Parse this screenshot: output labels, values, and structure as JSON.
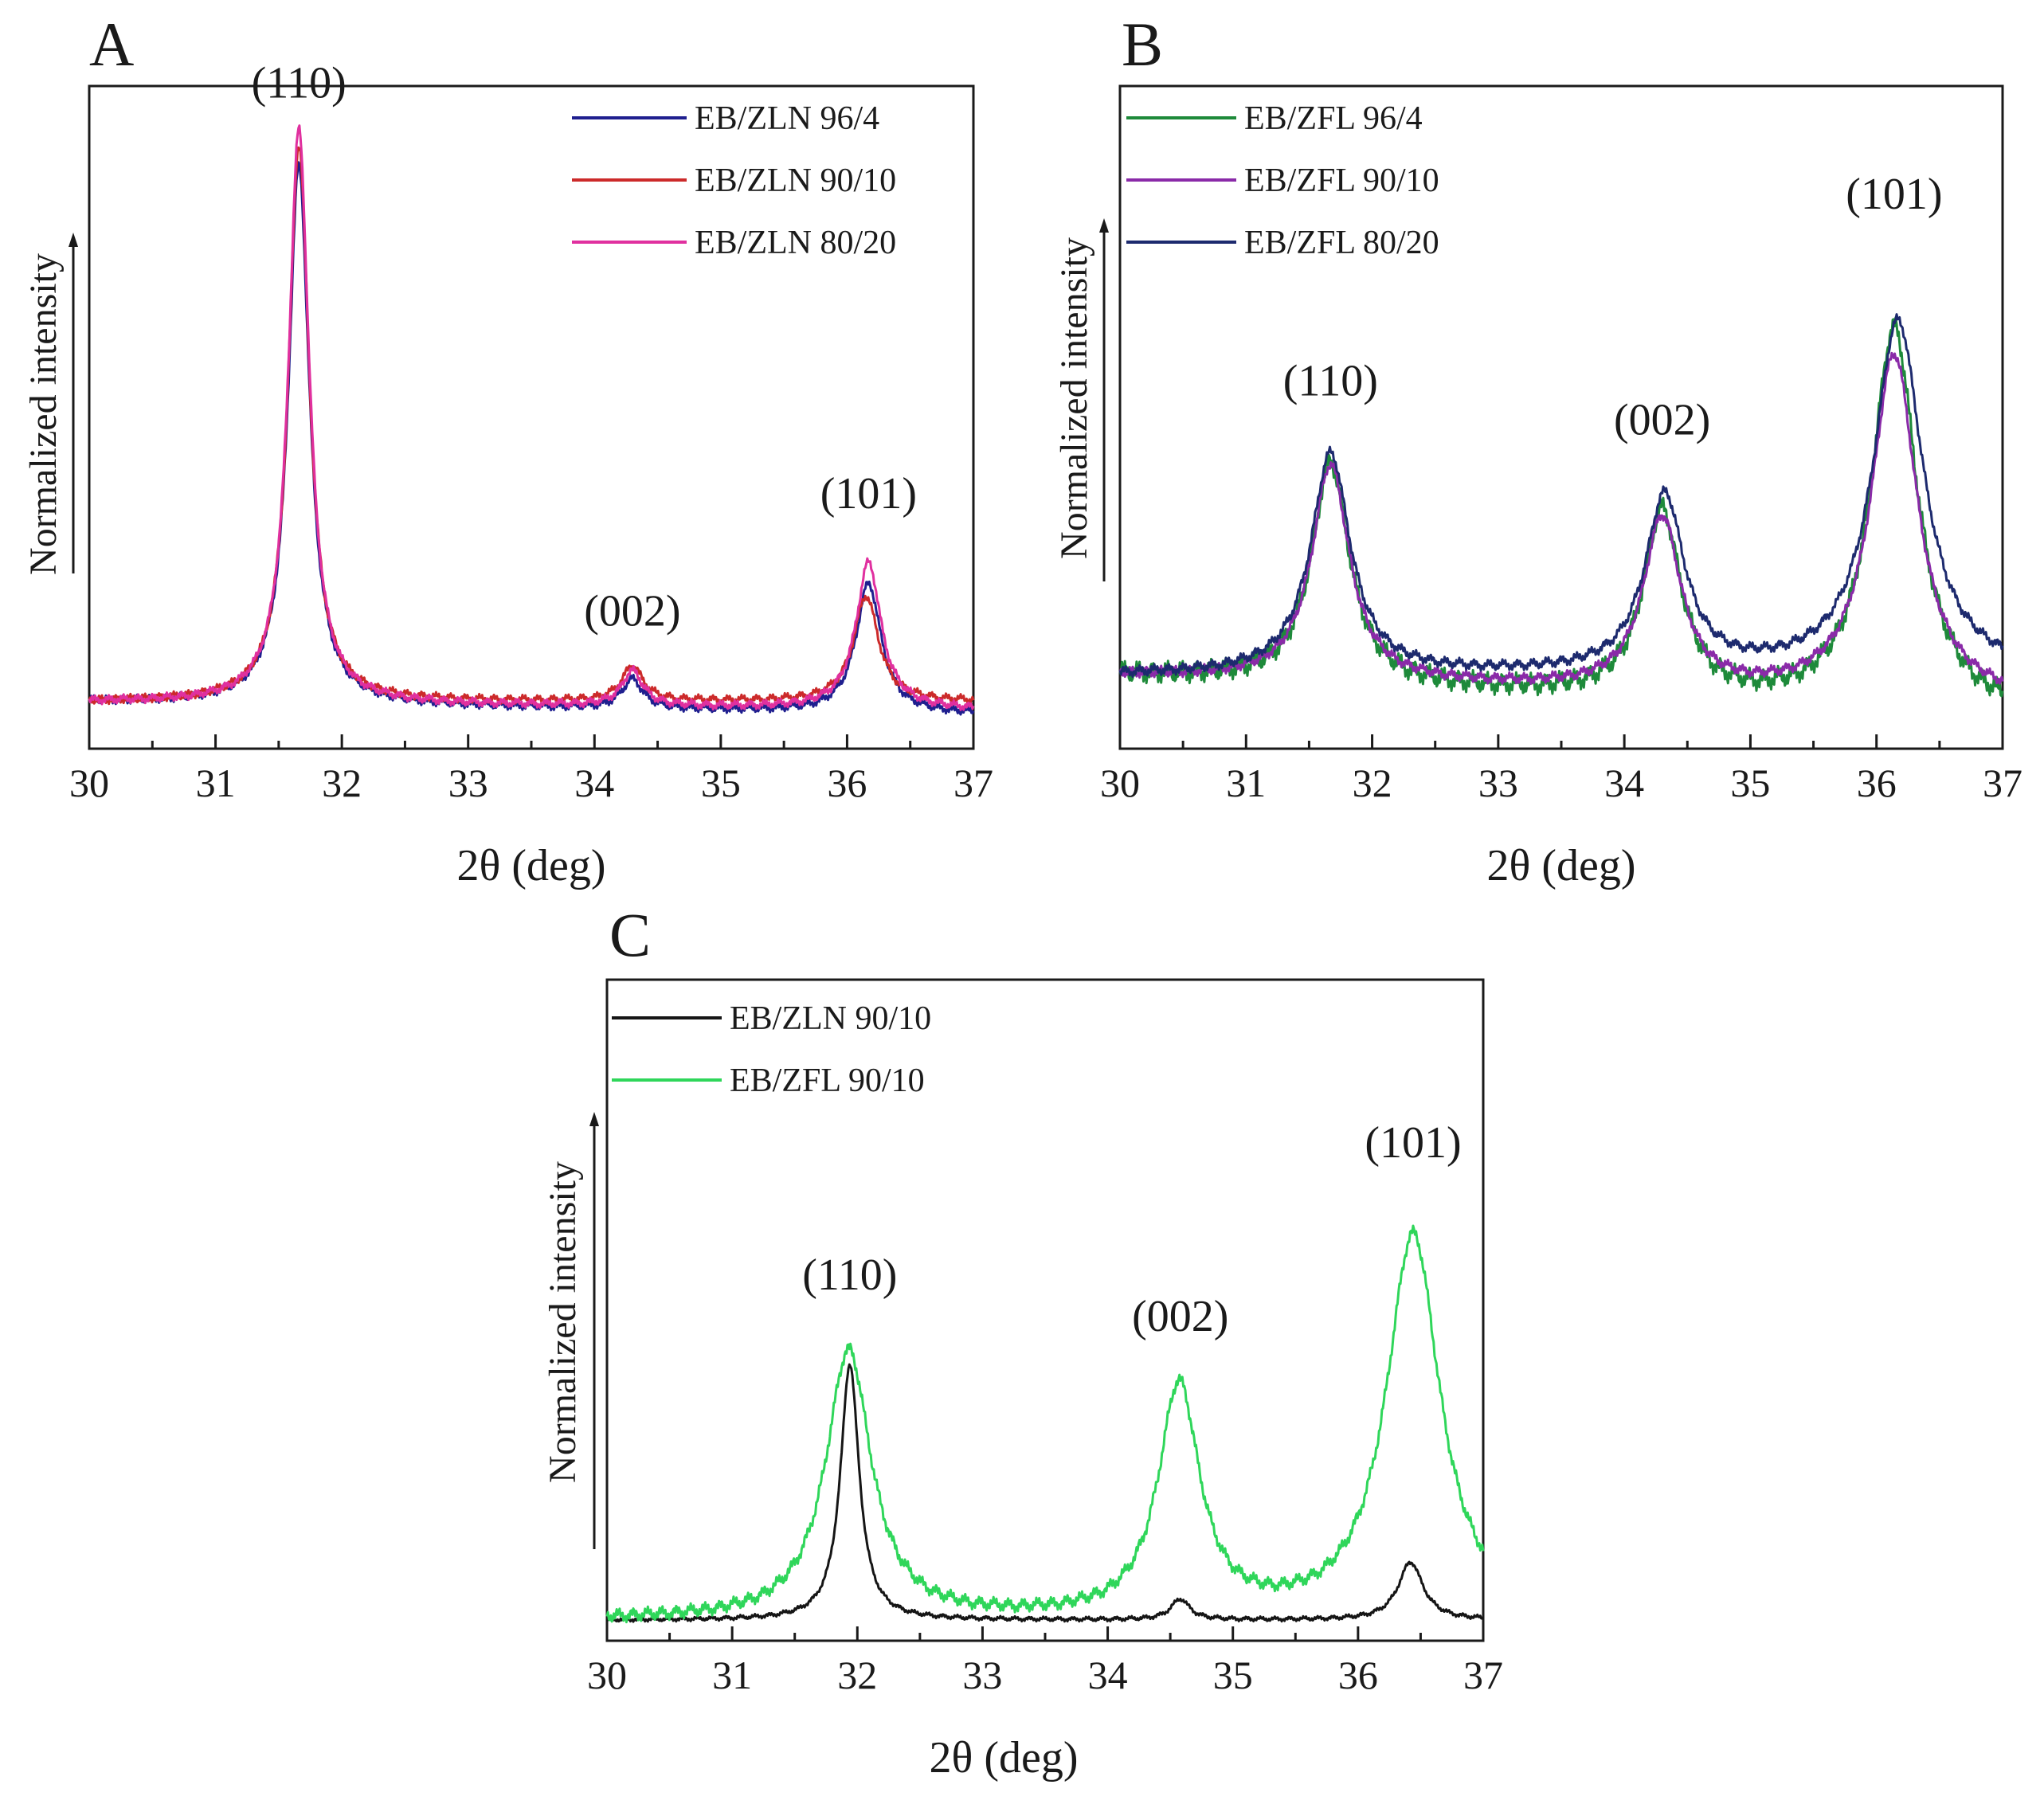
{
  "figure": {
    "panels": [
      "A",
      "B",
      "C"
    ]
  },
  "chart_data": [
    {
      "type": "line",
      "panel": "A",
      "xlabel": "2θ (deg)",
      "ylabel": "Normalized intensity",
      "xlim": [
        30,
        37
      ],
      "ylim": [
        -0.08,
        1.05
      ],
      "xticks": [
        30,
        31,
        32,
        33,
        34,
        35,
        36,
        37
      ],
      "legend_position": "top-right",
      "series": [
        {
          "name": "EB/ZLN 96/4",
          "color": "#1f1f8f",
          "baseline": 0.0,
          "slope": -0.003,
          "noise": 0.004,
          "peaks": [
            [
              31.66,
              0.92,
              0.1
            ],
            [
              34.3,
              0.05,
              0.1
            ],
            [
              36.17,
              0.22,
              0.12
            ]
          ]
        },
        {
          "name": "EB/ZLN 90/10",
          "color": "#cc2a2a",
          "baseline": 0.0,
          "slope": 0.0,
          "noise": 0.004,
          "peaks": [
            [
              31.66,
              0.95,
              0.1
            ],
            [
              34.3,
              0.06,
              0.1
            ],
            [
              36.15,
              0.18,
              0.12
            ]
          ]
        },
        {
          "name": "EB/ZLN 80/20",
          "color": "#e0309f",
          "baseline": 0.0,
          "slope": -0.002,
          "noise": 0.004,
          "peaks": [
            [
              31.66,
              0.98,
              0.1
            ],
            [
              34.3,
              0.06,
              0.1
            ],
            [
              36.17,
              0.25,
              0.12
            ]
          ]
        }
      ],
      "annotations": [
        {
          "text": "(110)",
          "x": 31.66,
          "y": 1.03
        },
        {
          "text": "(002)",
          "x": 34.3,
          "y": 0.13
        },
        {
          "text": "(101)",
          "x": 36.17,
          "y": 0.33
        }
      ]
    },
    {
      "type": "line",
      "panel": "B",
      "xlabel": "2θ (deg)",
      "ylabel": "Normalized intensity",
      "xlim": [
        30,
        37
      ],
      "ylim": [
        -0.15,
        1.2
      ],
      "xticks": [
        30,
        31,
        32,
        33,
        34,
        35,
        36,
        37
      ],
      "legend_position": "top-left",
      "series": [
        {
          "name": "EB/ZFL 96/4",
          "color": "#1e8a3a",
          "baseline": 0.0,
          "slope": -0.012,
          "noise": 0.012,
          "peaks": [
            [
              31.67,
              0.45,
              0.18
            ],
            [
              34.3,
              0.38,
              0.18
            ],
            [
              36.14,
              0.78,
              0.22
            ]
          ]
        },
        {
          "name": "EB/ZFL 90/10",
          "color": "#8a2aa8",
          "baseline": 0.0,
          "slope": -0.008,
          "noise": 0.006,
          "peaks": [
            [
              31.67,
              0.44,
              0.18
            ],
            [
              34.3,
              0.35,
              0.18
            ],
            [
              36.14,
              0.7,
              0.22
            ]
          ]
        },
        {
          "name": "EB/ZFL 80/20",
          "color": "#1d2a6e",
          "baseline": 0.0,
          "slope": 0.0,
          "noise": 0.006,
          "peaks": [
            [
              31.67,
              0.45,
              0.19
            ],
            [
              34.32,
              0.36,
              0.19
            ],
            [
              36.17,
              0.72,
              0.24
            ]
          ]
        }
      ],
      "annotations": [
        {
          "text": "(110)",
          "x": 31.67,
          "y": 0.57
        },
        {
          "text": "(002)",
          "x": 34.3,
          "y": 0.49
        },
        {
          "text": "(101)",
          "x": 36.14,
          "y": 0.95
        }
      ]
    },
    {
      "type": "line",
      "panel": "C",
      "xlabel": "2θ (deg)",
      "ylabel": "Normalized intensity",
      "xlim": [
        30,
        37
      ],
      "ylim": [
        -0.05,
        1.55
      ],
      "xticks": [
        30,
        31,
        32,
        33,
        34,
        35,
        36,
        37
      ],
      "legend_position": "top-left",
      "series": [
        {
          "name": "EB/ZLN 90/10",
          "color": "#151515",
          "baseline": 0.0,
          "slope": 0.0,
          "noise": 0.003,
          "peaks": [
            [
              31.94,
              0.62,
              0.09
            ],
            [
              34.58,
              0.05,
              0.09
            ],
            [
              36.42,
              0.14,
              0.12
            ]
          ]
        },
        {
          "name": "EB/ZFL 90/10",
          "color": "#2fd65a",
          "baseline": 0.0,
          "slope": 0.0,
          "noise": 0.009,
          "peaks": [
            [
              31.93,
              0.65,
              0.22
            ],
            [
              34.57,
              0.56,
              0.2
            ],
            [
              36.44,
              0.93,
              0.26
            ]
          ]
        }
      ],
      "annotations": [
        {
          "text": "(110)",
          "x": 31.94,
          "y": 0.8
        },
        {
          "text": "(002)",
          "x": 34.58,
          "y": 0.7
        },
        {
          "text": "(101)",
          "x": 36.44,
          "y": 1.12
        }
      ]
    }
  ]
}
